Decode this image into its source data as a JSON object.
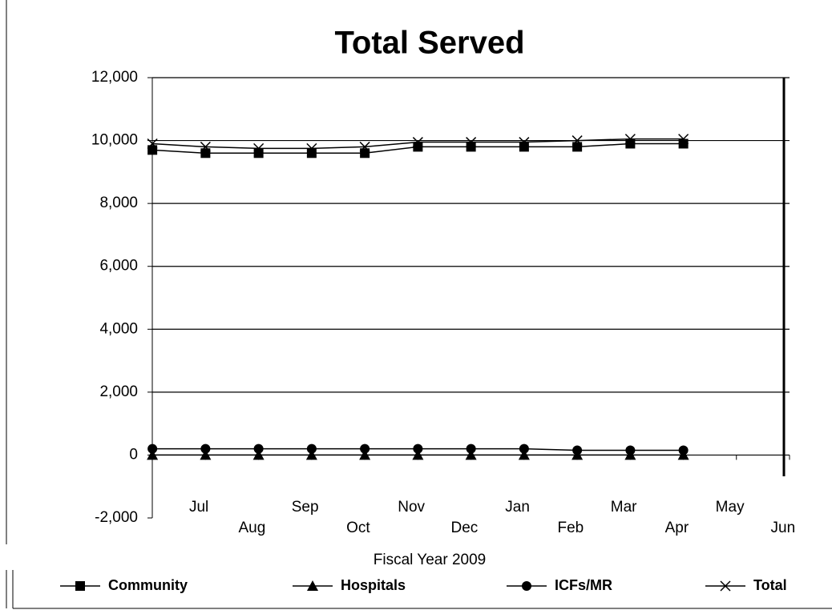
{
  "chart_data": {
    "type": "line",
    "title": "Total Served",
    "x_label": "Fiscal Year 2009",
    "categories": [
      "Jul",
      "Aug",
      "Sep",
      "Oct",
      "Nov",
      "Dec",
      "Jan",
      "Feb",
      "Mar",
      "Apr",
      "May",
      "Jun"
    ],
    "series": [
      {
        "name": "Community",
        "color": "#000000",
        "marker": "square",
        "values": [
          9700,
          9600,
          9600,
          9600,
          9600,
          9800,
          9800,
          9800,
          9800,
          9900,
          9900,
          null
        ]
      },
      {
        "name": "Hospitals",
        "color": "#000000",
        "marker": "triangle",
        "values": [
          0,
          0,
          0,
          0,
          0,
          0,
          0,
          0,
          0,
          0,
          0,
          null
        ]
      },
      {
        "name": "ICFs/MR",
        "color": "#000000",
        "marker": "circle",
        "values": [
          200,
          200,
          200,
          200,
          200,
          200,
          200,
          200,
          150,
          150,
          150,
          null
        ]
      },
      {
        "name": "Total",
        "color": "#000000",
        "marker": "x",
        "values": [
          9900,
          9800,
          9750,
          9750,
          9800,
          9950,
          9950,
          9950,
          10000,
          10050,
          10050,
          null
        ]
      }
    ],
    "ylim": [
      -2000,
      12000
    ],
    "yticks": [
      {
        "value": -2000,
        "label": "-2,000"
      },
      0,
      {
        "value": 2000,
        "label": "2,000"
      },
      {
        "value": 4000,
        "label": "4,000"
      },
      {
        "value": 6000,
        "label": "6,000"
      },
      {
        "value": 8000,
        "label": "8,000"
      },
      {
        "value": 10000,
        "label": "10,000"
      },
      {
        "value": 12000,
        "label": "12,000"
      }
    ],
    "grid": true
  }
}
